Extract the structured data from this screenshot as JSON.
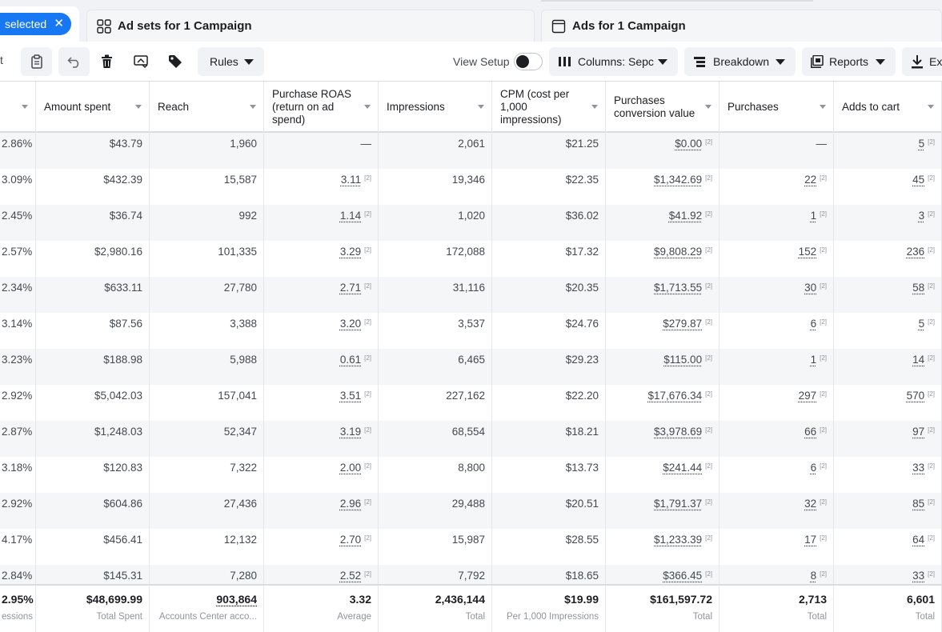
{
  "tabs": {
    "selected_label": "selected",
    "adsets_label": "Ad sets for 1 Campaign",
    "ads_label": "Ads for 1 Campaign"
  },
  "toolbar": {
    "rules_label": "Rules",
    "view_setup_label": "View Setup",
    "columns_label": "Columns: Sepc",
    "breakdown_label": "Breakdown",
    "reports_label": "Reports",
    "export_label": "Ex",
    "partial_left_label": "t"
  },
  "columns": [
    {
      "key": "ctr",
      "label": ""
    },
    {
      "key": "amount_spent",
      "label": "Amount spent"
    },
    {
      "key": "reach",
      "label": "Reach"
    },
    {
      "key": "roas",
      "label": "Purchase ROAS (return on ad spend)"
    },
    {
      "key": "impressions",
      "label": "Impressions"
    },
    {
      "key": "cpm",
      "label": "CPM (cost per 1,000 impressions)"
    },
    {
      "key": "pcv",
      "label": "Purchases conversion value"
    },
    {
      "key": "purchases",
      "label": "Purchases"
    },
    {
      "key": "adds_to_cart",
      "label": "Adds to cart"
    }
  ],
  "rows": [
    [
      "2.86%",
      "$43.79",
      "1,960",
      "—",
      "2,061",
      "$21.25",
      "$0.00",
      "—",
      "5"
    ],
    [
      "3.09%",
      "$432.39",
      "15,587",
      "3.11",
      "19,346",
      "$22.35",
      "$1,342.69",
      "22",
      "45"
    ],
    [
      "2.45%",
      "$36.74",
      "992",
      "1.14",
      "1,020",
      "$36.02",
      "$41.92",
      "1",
      "3"
    ],
    [
      "2.57%",
      "$2,980.16",
      "101,335",
      "3.29",
      "172,088",
      "$17.32",
      "$9,808.29",
      "152",
      "236"
    ],
    [
      "2.34%",
      "$633.11",
      "27,780",
      "2.71",
      "31,116",
      "$20.35",
      "$1,713.55",
      "30",
      "58"
    ],
    [
      "3.14%",
      "$87.56",
      "3,388",
      "3.20",
      "3,537",
      "$24.76",
      "$279.87",
      "6",
      "5"
    ],
    [
      "3.23%",
      "$188.98",
      "5,988",
      "0.61",
      "6,465",
      "$29.23",
      "$115.00",
      "1",
      "14"
    ],
    [
      "2.92%",
      "$5,042.03",
      "157,041",
      "3.51",
      "227,162",
      "$22.20",
      "$17,676.34",
      "297",
      "570"
    ],
    [
      "2.87%",
      "$1,248.03",
      "52,347",
      "3.19",
      "68,554",
      "$18.21",
      "$3,978.69",
      "66",
      "97"
    ],
    [
      "3.18%",
      "$120.83",
      "7,322",
      "2.00",
      "8,800",
      "$13.73",
      "$241.44",
      "6",
      "33"
    ],
    [
      "2.92%",
      "$604.86",
      "27,436",
      "2.96",
      "29,488",
      "$20.51",
      "$1,791.37",
      "32",
      "85"
    ],
    [
      "4.17%",
      "$456.41",
      "12,132",
      "2.70",
      "15,987",
      "$28.55",
      "$1,233.39",
      "17",
      "64"
    ],
    [
      "2.84%",
      "$145.31",
      "7,280",
      "2.52",
      "7,792",
      "$18.65",
      "$366.45",
      "8",
      "33"
    ]
  ],
  "link_columns": [
    3,
    6,
    7,
    8
  ],
  "attribution_marker": "[2]",
  "totals": [
    {
      "value": "2.95%",
      "sub": "essions"
    },
    {
      "value": "$48,699.99",
      "sub": "Total Spent"
    },
    {
      "value": "903,864",
      "sub": "Accounts Center acco..."
    },
    {
      "value": "3.32",
      "sub": "Average"
    },
    {
      "value": "2,436,144",
      "sub": "Total"
    },
    {
      "value": "$19.99",
      "sub": "Per 1,000 Impressions"
    },
    {
      "value": "$161,597.72",
      "sub": "Total"
    },
    {
      "value": "2,713",
      "sub": "Total"
    },
    {
      "value": "6,601",
      "sub": "Total"
    }
  ],
  "colors": {
    "accent": "#1877f2",
    "border": "#dadde1",
    "alt_row": "#f5f6f7",
    "muted": "#90949c"
  }
}
